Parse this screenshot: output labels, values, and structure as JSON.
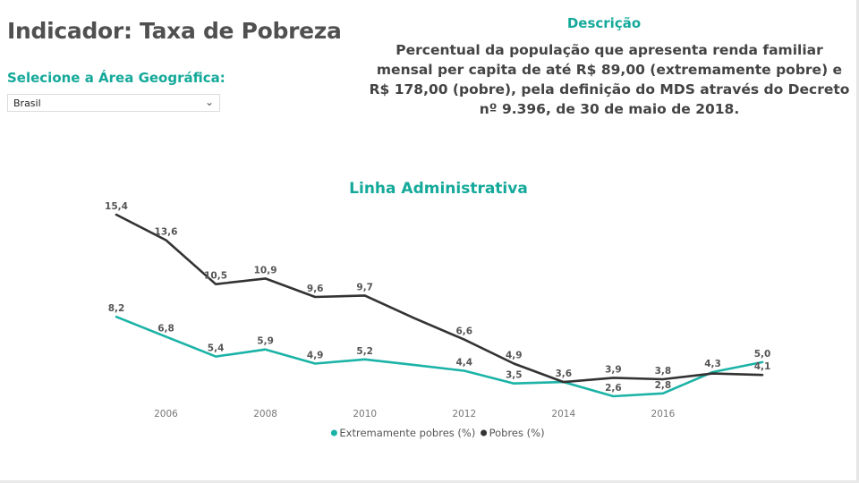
{
  "header": {
    "title": "Indicador: Taxa de Pobreza"
  },
  "filter": {
    "label": "Selecione a Área Geográfica:",
    "selected": "Brasil"
  },
  "description": {
    "title": "Descrição",
    "text": "Percentual da população que apresenta renda familiar mensal per capita de até R$ 89,00 (extremamente pobre) e R$ 178,00 (pobre), pela definição do MDS através do Decreto nº 9.396, de 30 de maio de 2018."
  },
  "colors": {
    "accent": "#14a99a",
    "series_extreme": "#1bb3a6",
    "series_poor": "#333333"
  },
  "chart_data": {
    "type": "line",
    "title": "Linha Administrativa",
    "xlabel": "",
    "ylabel": "",
    "x": [
      2005,
      2006,
      2007,
      2008,
      2009,
      2010,
      2011,
      2012,
      2013,
      2014,
      2015,
      2016,
      2017,
      2018
    ],
    "x_tick_labels": [
      "2006",
      "2008",
      "2010",
      "2012",
      "2014",
      "2016"
    ],
    "x_tick_values": [
      2006,
      2008,
      2010,
      2012,
      2014,
      2016
    ],
    "ylim": [
      2,
      16
    ],
    "series": [
      {
        "name": "Extremamente pobres (%)",
        "values": [
          8.2,
          6.8,
          5.4,
          5.9,
          4.9,
          5.2,
          null,
          4.4,
          3.5,
          null,
          2.6,
          2.8,
          4.3,
          5.0
        ],
        "interp": [
          8.2,
          6.8,
          5.4,
          5.9,
          4.9,
          5.2,
          4.8,
          4.4,
          3.5,
          3.6,
          2.6,
          2.8,
          4.3,
          5.0
        ]
      },
      {
        "name": "Pobres (%)",
        "values": [
          15.4,
          13.6,
          10.5,
          10.9,
          9.6,
          9.7,
          null,
          6.6,
          4.9,
          3.6,
          3.9,
          3.8,
          null,
          4.1
        ],
        "interp": [
          15.4,
          13.6,
          10.5,
          10.9,
          9.6,
          9.7,
          8.1,
          6.6,
          4.9,
          3.6,
          3.9,
          3.8,
          4.2,
          4.1
        ]
      }
    ],
    "data_labels": [
      {
        "series": 1,
        "i": 0,
        "text": "15,4"
      },
      {
        "series": 1,
        "i": 1,
        "text": "13,6"
      },
      {
        "series": 1,
        "i": 2,
        "text": "10,5"
      },
      {
        "series": 1,
        "i": 3,
        "text": "10,9"
      },
      {
        "series": 1,
        "i": 4,
        "text": "9,6"
      },
      {
        "series": 1,
        "i": 5,
        "text": "9,7"
      },
      {
        "series": 1,
        "i": 7,
        "text": "6,6"
      },
      {
        "series": 1,
        "i": 8,
        "text": "4,9"
      },
      {
        "series": 1,
        "i": 9,
        "text": "3,6"
      },
      {
        "series": 1,
        "i": 10,
        "text": "3,9"
      },
      {
        "series": 1,
        "i": 11,
        "text": "3,8"
      },
      {
        "series": 1,
        "i": 13,
        "text": "4,1"
      },
      {
        "series": 0,
        "i": 0,
        "text": "8,2"
      },
      {
        "series": 0,
        "i": 1,
        "text": "6,8"
      },
      {
        "series": 0,
        "i": 2,
        "text": "5,4"
      },
      {
        "series": 0,
        "i": 3,
        "text": "5,9"
      },
      {
        "series": 0,
        "i": 4,
        "text": "4,9"
      },
      {
        "series": 0,
        "i": 5,
        "text": "5,2"
      },
      {
        "series": 0,
        "i": 7,
        "text": "4,4"
      },
      {
        "series": 0,
        "i": 8,
        "text": "3,5"
      },
      {
        "series": 0,
        "i": 10,
        "text": "2,6"
      },
      {
        "series": 0,
        "i": 11,
        "text": "2,8"
      },
      {
        "series": 0,
        "i": 12,
        "text": "4,3"
      },
      {
        "series": 0,
        "i": 13,
        "text": "5,0"
      }
    ],
    "legend": [
      "Extremamente pobres (%)",
      "Pobres (%)"
    ],
    "legend_position": "bottom-center",
    "grid": false
  }
}
